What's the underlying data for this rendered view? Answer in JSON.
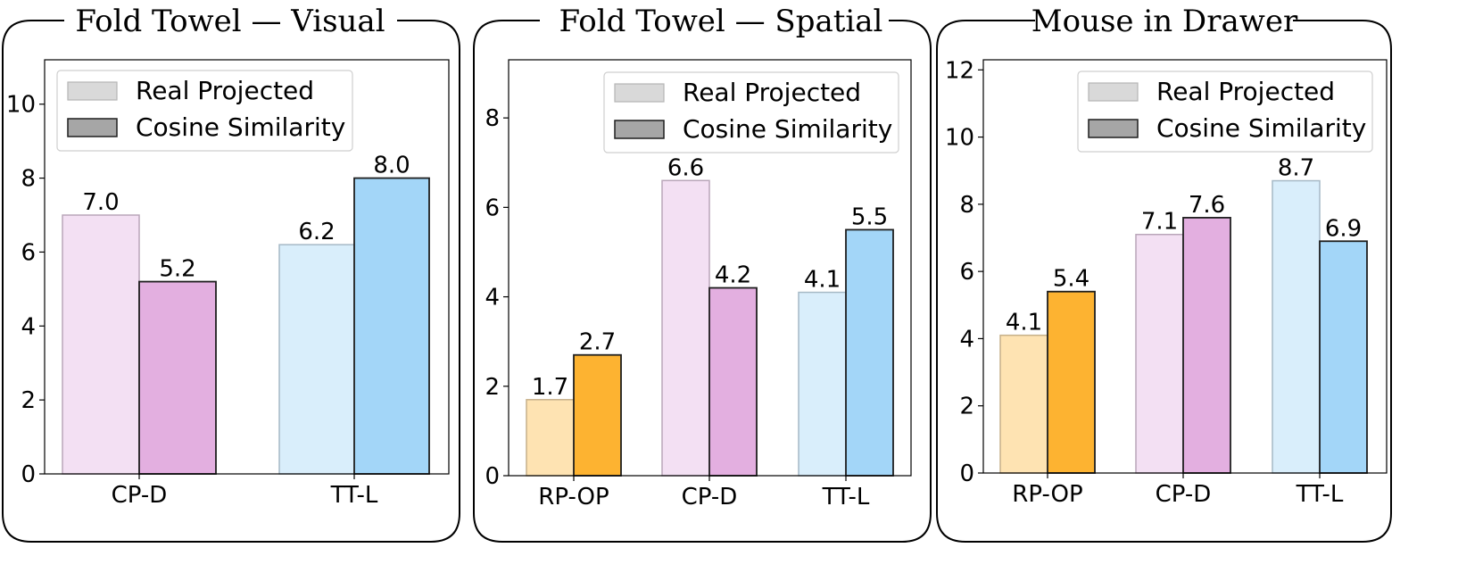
{
  "chart_data": [
    {
      "type": "bar",
      "title": "Fold Towel — Visual",
      "categories": [
        "CP-D",
        "TT-L"
      ],
      "series": [
        {
          "name": "Real Projected",
          "values": [
            7.0,
            6.2
          ]
        },
        {
          "name": "Cosine Similarity",
          "values": [
            5.2,
            8.0
          ]
        }
      ],
      "value_labels": [
        [
          "7.0",
          "6.2"
        ],
        [
          "5.2",
          "8.0"
        ]
      ],
      "ylim": [
        0,
        11.2
      ],
      "yticks": [
        0,
        2,
        4,
        6,
        8,
        10
      ],
      "xlabel": "",
      "ylabel": "",
      "legend_position": "top-left",
      "category_colors": {
        "light": [
          "#f3e0f3",
          "#d9eefb"
        ],
        "dark": [
          "#e3afe0",
          "#a3d6f8"
        ],
        "light_edge": [
          "#b9a6b9",
          "#a6b9c6"
        ]
      }
    },
    {
      "type": "bar",
      "title": "Fold Towel — Spatial",
      "categories": [
        "RP-OP",
        "CP-D",
        "TT-L"
      ],
      "series": [
        {
          "name": "Real Projected",
          "values": [
            1.7,
            6.6,
            4.1
          ]
        },
        {
          "name": "Cosine Similarity",
          "values": [
            2.7,
            4.2,
            5.5
          ]
        }
      ],
      "value_labels": [
        [
          "1.7",
          "6.6",
          "4.1"
        ],
        [
          "2.7",
          "4.2",
          "5.5"
        ]
      ],
      "ylim": [
        0,
        9.3
      ],
      "yticks": [
        0,
        2,
        4,
        6,
        8
      ],
      "xlabel": "",
      "ylabel": "",
      "legend_position": "top-right",
      "category_colors": {
        "light": [
          "#fee3b2",
          "#f3e0f3",
          "#d9eefb"
        ],
        "dark": [
          "#fdb331",
          "#e3afe0",
          "#a3d6f8"
        ],
        "light_edge": [
          "#c6b08a",
          "#b9a6b9",
          "#a6b9c6"
        ]
      }
    },
    {
      "type": "bar",
      "title": "Mouse in Drawer",
      "categories": [
        "RP-OP",
        "CP-D",
        "TT-L"
      ],
      "series": [
        {
          "name": "Real Projected",
          "values": [
            4.1,
            7.1,
            8.7
          ]
        },
        {
          "name": "Cosine Similarity",
          "values": [
            5.4,
            7.6,
            6.9
          ]
        }
      ],
      "value_labels": [
        [
          "4.1",
          "7.1",
          "8.7"
        ],
        [
          "5.4",
          "7.6",
          "6.9"
        ]
      ],
      "ylim": [
        0,
        12.3
      ],
      "yticks": [
        0,
        2,
        4,
        6,
        8,
        10,
        12
      ],
      "xlabel": "",
      "ylabel": "",
      "legend_position": "top-right",
      "category_colors": {
        "light": [
          "#fee3b2",
          "#f3e0f3",
          "#d9eefb"
        ],
        "dark": [
          "#fdb331",
          "#e3afe0",
          "#a3d6f8"
        ],
        "light_edge": [
          "#c6b08a",
          "#b9a6b9",
          "#a6b9c6"
        ]
      }
    }
  ],
  "legend": {
    "light_swatch_color": "#d9d9d9",
    "dark_swatch_color": "#a6a6a6"
  }
}
